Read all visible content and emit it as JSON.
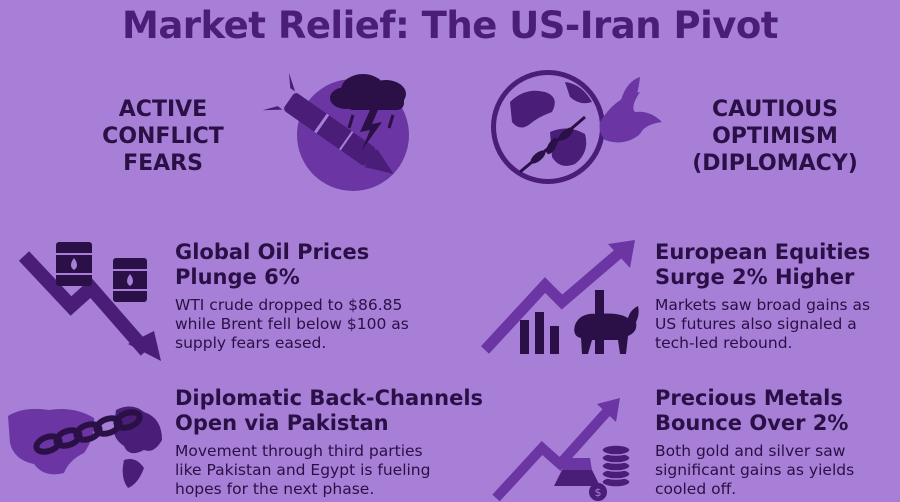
{
  "title": "Market Relief: The US-Iran Pivot",
  "left_label": [
    "ACTIVE",
    "CONFLICT",
    "FEARS"
  ],
  "right_label": [
    "CAUTIOUS",
    "OPTIMISM",
    "(DIPLOMACY)"
  ],
  "cards": [
    {
      "head": [
        "Global Oil Prices",
        "Plunge 6%"
      ],
      "body": [
        "WTI crude dropped to $86.85",
        "while Brent fell below $100 as",
        "supply fears eased."
      ]
    },
    {
      "head": [
        "European Equities",
        "Surge 2% Higher"
      ],
      "body": [
        "Markets saw broad gains as",
        "US futures also signaled a",
        "tech-led rebound."
      ]
    },
    {
      "head": [
        "Diplomatic Back-Channels",
        "Open via Pakistan"
      ],
      "body": [
        "Movement through third parties",
        "like Pakistan and Egypt is fueling",
        "hopes for the next phase."
      ]
    },
    {
      "head": [
        "Precious Metals",
        "Bounce Over 2%"
      ],
      "body": [
        "Both gold and silver saw",
        "significant gains as yields",
        "cooled off."
      ]
    }
  ],
  "icons": {
    "conflict": "missile-storm-icon",
    "diplomacy": "globe-dove-icon",
    "oil": "oil-barrels-falling-chart-icon",
    "equities": "bull-rising-chart-icon",
    "diplomatic": "chained-maps-icon",
    "metals": "gold-bars-coins-icon"
  },
  "colors": {
    "background": "#a77fd6",
    "title": "#4a1d78",
    "icon_dark": "#4a1d78",
    "icon_mid": "#6b35a3",
    "icon_light": "#e9dcf7"
  }
}
